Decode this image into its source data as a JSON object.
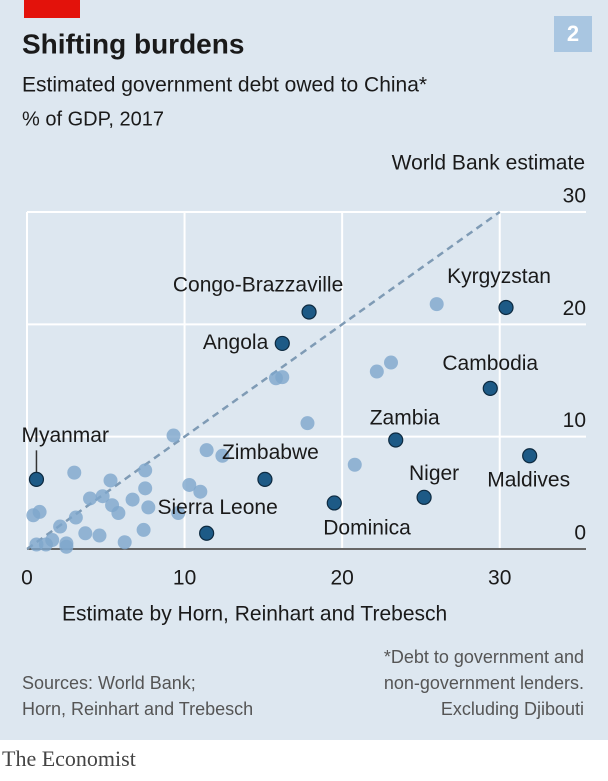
{
  "chart_data": {
    "type": "scatter",
    "title": "Shifting burdens",
    "subtitle": "Estimated government debt owed to China*",
    "unit": "% of GDP, 2017",
    "badge": "2",
    "ylabel": "World Bank estimate",
    "xlabel": "Estimate by Horn, Reinhart and Trebesch",
    "note": [
      "*Debt to government and",
      "non-government lenders.",
      "Excluding Djibouti"
    ],
    "source": [
      "Sources: World Bank;",
      "Horn, Reinhart and Trebesch"
    ],
    "brand": "The Economist",
    "xlim": [
      0,
      33
    ],
    "ylim": [
      0,
      30
    ],
    "xticks": [
      0,
      10,
      20,
      30
    ],
    "yticks": [
      0,
      10,
      20,
      30
    ],
    "grid": true,
    "diagonal": true,
    "series": [
      {
        "color": "#7ea6cc",
        "x": [
          26.0,
          23.1,
          22.2,
          16.2,
          15.8,
          17.8,
          9.3,
          11.4,
          12.4,
          20.8,
          7.5,
          3.0,
          5.3,
          10.3,
          7.5,
          11.0,
          4.8,
          4.0,
          6.7,
          5.4,
          5.8,
          7.7,
          9.6,
          3.1,
          0.4,
          0.8,
          2.1,
          3.7,
          4.6,
          7.4,
          6.2,
          1.6,
          1.2,
          2.5,
          0.6,
          2.5
        ],
        "values": [
          21.8,
          16.6,
          15.8,
          15.3,
          15.2,
          11.2,
          10.1,
          8.8,
          8.3,
          7.5,
          7.0,
          6.8,
          6.1,
          5.7,
          5.4,
          5.1,
          4.7,
          4.5,
          4.4,
          3.9,
          3.2,
          3.7,
          3.2,
          2.8,
          3.0,
          3.3,
          2.0,
          1.4,
          1.2,
          1.7,
          0.6,
          0.8,
          0.4,
          0.5,
          0.4,
          0.2
        ]
      },
      {
        "color": "#1d5a86",
        "x": [
          0.6,
          17.9,
          16.2,
          30.4,
          29.4,
          23.4,
          15.1,
          31.9,
          25.2,
          19.5,
          11.4
        ],
        "values": [
          6.2,
          21.1,
          18.3,
          21.5,
          14.3,
          9.7,
          6.2,
          8.3,
          4.6,
          4.1,
          1.4
        ],
        "labels": [
          "Myanmar",
          "Congo-Brazzaville",
          "Angola",
          "Kyrgyzstan",
          "Cambodia",
          "Zambia",
          "Zimbabwe",
          "Maldives",
          "Niger",
          "Dominica",
          "Sierra Leone"
        ]
      }
    ]
  }
}
